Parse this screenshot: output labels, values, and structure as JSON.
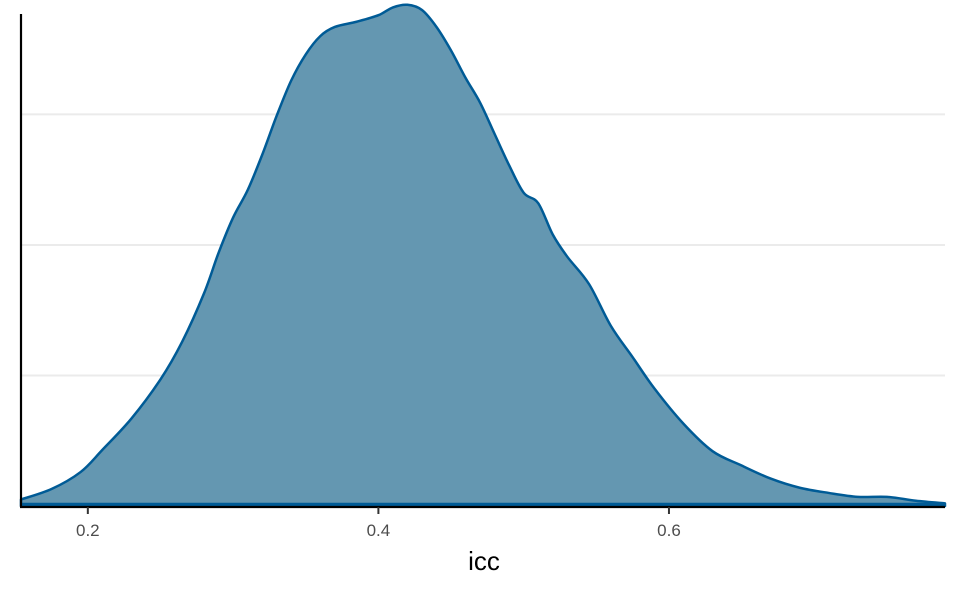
{
  "chart_data": {
    "type": "area",
    "title": "",
    "xlabel": "icc",
    "ylabel": "",
    "xlim": [
      0.154,
      0.79
    ],
    "ylim": [
      0,
      3.8
    ],
    "grid": {
      "major_y": true,
      "major_x": false
    },
    "x_ticks": [
      {
        "value": 0.2,
        "label": "0.2"
      },
      {
        "value": 0.4,
        "label": "0.4"
      },
      {
        "value": 0.6,
        "label": "0.6"
      }
    ],
    "y_gridlines": [
      1,
      2,
      3
    ],
    "series": [
      {
        "x": [
          0.154,
          0.175,
          0.195,
          0.21,
          0.23,
          0.25,
          0.265,
          0.28,
          0.29,
          0.3,
          0.31,
          0.32,
          0.33,
          0.34,
          0.35,
          0.36,
          0.37,
          0.385,
          0.4,
          0.41,
          0.42,
          0.43,
          0.44,
          0.45,
          0.46,
          0.47,
          0.48,
          0.49,
          0.5,
          0.51,
          0.52,
          0.53,
          0.545,
          0.56,
          0.575,
          0.59,
          0.61,
          0.63,
          0.65,
          0.67,
          0.69,
          0.71,
          0.73,
          0.75,
          0.77,
          0.79
        ],
        "y": [
          0.05,
          0.13,
          0.26,
          0.43,
          0.67,
          0.97,
          1.26,
          1.63,
          1.94,
          2.21,
          2.42,
          2.69,
          2.99,
          3.26,
          3.46,
          3.6,
          3.67,
          3.71,
          3.76,
          3.82,
          3.84,
          3.8,
          3.67,
          3.49,
          3.28,
          3.09,
          2.85,
          2.61,
          2.4,
          2.32,
          2.08,
          1.91,
          1.7,
          1.38,
          1.14,
          0.9,
          0.63,
          0.42,
          0.31,
          0.21,
          0.14,
          0.1,
          0.07,
          0.07,
          0.04,
          0.02
        ]
      }
    ],
    "colors": {
      "fill": "#6497b1",
      "stroke": "#005b96",
      "grid": "#ebebeb",
      "axis": "#000000"
    }
  }
}
